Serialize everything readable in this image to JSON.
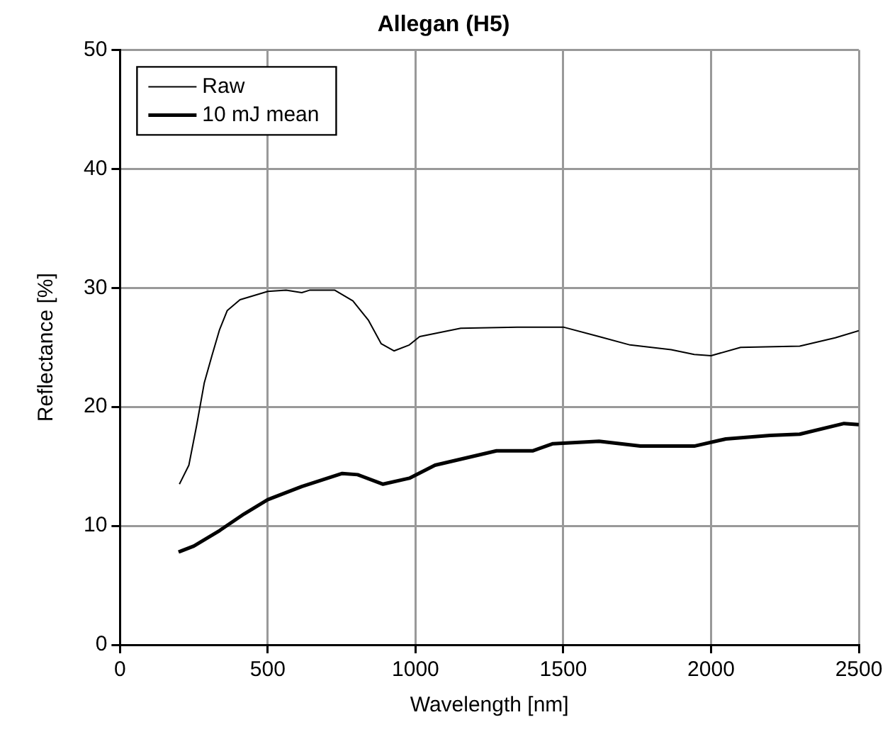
{
  "chart_data": {
    "type": "line",
    "title": "Allegan (H5)",
    "xlabel": "Wavelength [nm]",
    "ylabel": "Reflectance [%]",
    "xlim": [
      0,
      2500
    ],
    "xticks": [
      0,
      500,
      1000,
      1500,
      2000,
      2500
    ],
    "ylim": [
      0,
      50
    ],
    "yticks": [
      0,
      10,
      20,
      30,
      40,
      50
    ],
    "grid": true,
    "legend": "top left",
    "marker": "none",
    "series": [
      {
        "name": "Raw",
        "color": "#000000",
        "x": [
          201,
          233,
          259,
          285,
          311,
          337,
          363,
          406,
          500,
          562,
          615,
          641,
          727,
          788,
          840,
          884,
          927,
          979,
          1014,
          1153,
          1344,
          1500,
          1621,
          1726,
          1865,
          1943,
          2000,
          2100,
          2300,
          2420,
          2500
        ],
        "values": [
          13.5,
          15.1,
          18.4,
          22.0,
          24.3,
          26.5,
          28.1,
          29.0,
          29.7,
          29.8,
          29.6,
          29.8,
          29.8,
          28.9,
          27.3,
          25.3,
          24.7,
          25.2,
          25.9,
          26.6,
          26.7,
          26.7,
          25.9,
          25.2,
          24.8,
          24.4,
          24.3,
          25.0,
          25.1,
          25.8,
          26.4
        ]
      },
      {
        "name": "10 mJ mean",
        "color": "#000000",
        "x": [
          198,
          250,
          337,
          420,
          500,
          615,
          752,
          804,
          890,
          979,
          1066,
          1274,
          1396,
          1465,
          1621,
          1761,
          1943,
          2050,
          2200,
          2300,
          2450,
          2500
        ],
        "values": [
          7.8,
          8.3,
          9.6,
          11.0,
          12.2,
          13.3,
          14.4,
          14.3,
          13.5,
          14.0,
          15.1,
          16.3,
          16.3,
          16.9,
          17.1,
          16.7,
          16.7,
          17.3,
          17.6,
          17.7,
          18.6,
          18.5
        ]
      }
    ]
  }
}
